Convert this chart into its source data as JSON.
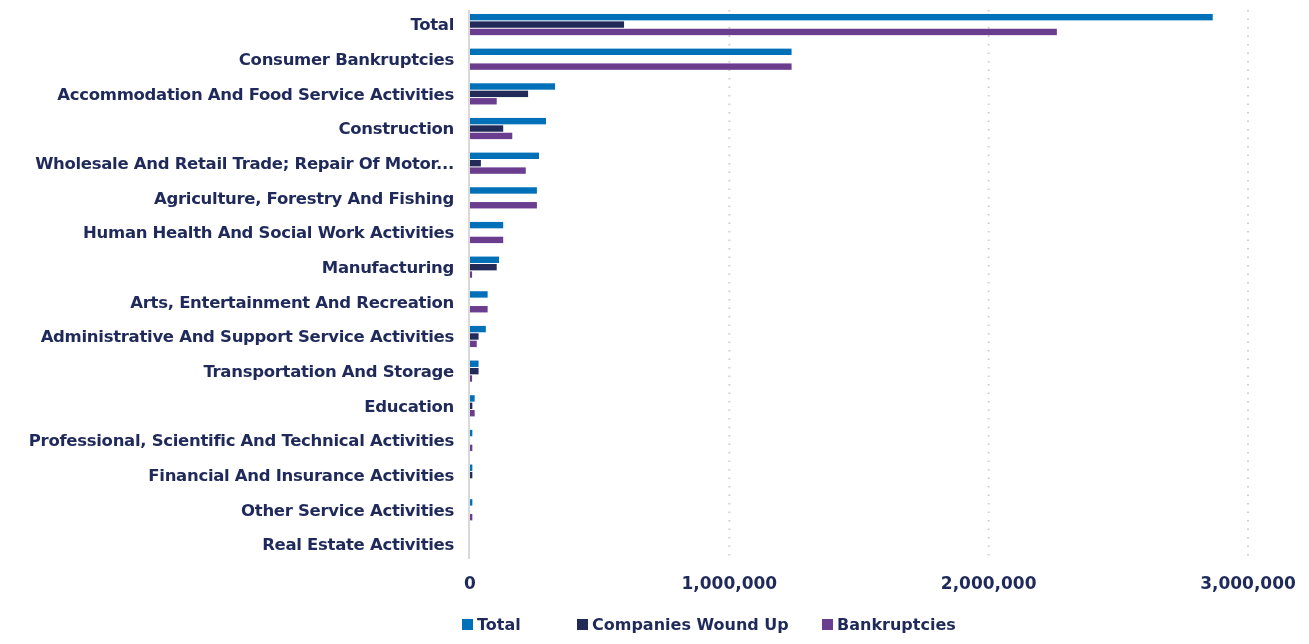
{
  "chart_data": {
    "type": "bar",
    "orientation": "horizontal",
    "categories": [
      "Total",
      "Consumer Bankruptcies",
      "Accommodation And Food Service Activities",
      "Construction",
      "Wholesale And Retail Trade; Repair Of Motor...",
      "Agriculture, Forestry And Fishing",
      "Human Health And Social Work Activities",
      "Manufacturing",
      "Arts, Entertainment And Recreation",
      "Administrative And Support Service Activities",
      "Transportation And Storage",
      "Education",
      "Professional, Scientific And Technical Activities",
      "Financial And Insurance Activities",
      "Other Service Activities",
      "Real Estate Activities"
    ],
    "series": [
      {
        "name": "Total",
        "color": "#0070b8",
        "values": [
          2864000,
          1240000,
          328000,
          293000,
          266000,
          258000,
          128000,
          112000,
          68000,
          61000,
          33000,
          18000,
          9000,
          9000,
          9000,
          null
        ]
      },
      {
        "name": "Companies Wound Up",
        "color": "#222a58",
        "values": [
          594000,
          null,
          224000,
          128000,
          42000,
          null,
          null,
          103000,
          null,
          33000,
          33000,
          9000,
          null,
          9000,
          null,
          null
        ]
      },
      {
        "name": "Bankruptcies",
        "color": "#6a3d8f",
        "values": [
          2263000,
          1240000,
          103000,
          163000,
          215000,
          258000,
          128000,
          8000,
          68000,
          26000,
          8000,
          18000,
          9000,
          null,
          9000,
          null
        ]
      }
    ],
    "xlim": [
      0,
      3000000
    ],
    "xticks": [
      {
        "value": 0,
        "label": "0"
      },
      {
        "value": 1000000,
        "label": "1,000,000"
      },
      {
        "value": 2000000,
        "label": "2,000,000"
      },
      {
        "value": 3000000,
        "label": "3,000,000"
      }
    ],
    "grid": "x",
    "legend": "bottom"
  }
}
